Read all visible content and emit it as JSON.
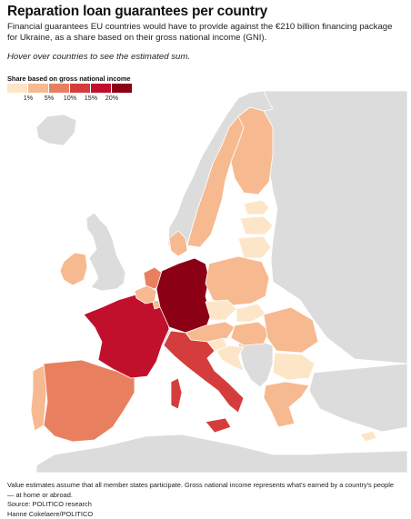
{
  "header": {
    "title": "Reparation loan guarantees per country",
    "subtitle": "Financial guarantees EU countries would have to provide against the €210 billion financing package for Ukraine, as a share based on their gross national income (GNI).",
    "hint": "Hover over countries to see the estimated sum."
  },
  "legend": {
    "title": "Share based on gross national income",
    "ticks": [
      "1%",
      "5%",
      "10%",
      "15%",
      "20%"
    ],
    "colors": [
      "#fde6c8",
      "#f7b98f",
      "#e8805f",
      "#d43d3b",
      "#c0102c",
      "#8b0014"
    ]
  },
  "map": {
    "background_color": "#dedede",
    "non_eu_color": "#dcdcdc",
    "countries": [
      {
        "name": "France",
        "color": "#c0102c"
      },
      {
        "name": "Germany",
        "color": "#8b0014"
      },
      {
        "name": "Italy",
        "color": "#d43d3b"
      },
      {
        "name": "Spain",
        "color": "#e8805f"
      },
      {
        "name": "Portugal",
        "color": "#f7b98f"
      },
      {
        "name": "Netherlands",
        "color": "#e8805f"
      },
      {
        "name": "Belgium",
        "color": "#f7b98f"
      },
      {
        "name": "Ireland",
        "color": "#f7b98f"
      },
      {
        "name": "Poland",
        "color": "#f7b98f"
      },
      {
        "name": "Sweden",
        "color": "#f7b98f"
      },
      {
        "name": "Finland",
        "color": "#f7b98f"
      },
      {
        "name": "Denmark",
        "color": "#f7b98f"
      },
      {
        "name": "Austria",
        "color": "#f7b98f"
      },
      {
        "name": "Czechia",
        "color": "#fde6c8"
      },
      {
        "name": "Slovakia",
        "color": "#fde6c8"
      },
      {
        "name": "Hungary",
        "color": "#f7b98f"
      },
      {
        "name": "Romania",
        "color": "#f7b98f"
      },
      {
        "name": "Bulgaria",
        "color": "#fde6c8"
      },
      {
        "name": "Greece",
        "color": "#f7b98f"
      },
      {
        "name": "Croatia",
        "color": "#fde6c8"
      },
      {
        "name": "Slovenia",
        "color": "#fde6c8"
      },
      {
        "name": "Lithuania",
        "color": "#fde6c8"
      },
      {
        "name": "Latvia",
        "color": "#fde6c8"
      },
      {
        "name": "Estonia",
        "color": "#fde6c8"
      },
      {
        "name": "Cyprus",
        "color": "#fde6c8"
      },
      {
        "name": "Luxembourg",
        "color": "#f7b98f"
      }
    ]
  },
  "footer": {
    "note_line1": "Value estimates assume that all member states participate. Gross national income represents what's earned by a country's people",
    "note_line2": "— at home or abroad.",
    "source": "Source: POLITICO research",
    "credit": "Hanne Cokelaere/POLITICO"
  }
}
